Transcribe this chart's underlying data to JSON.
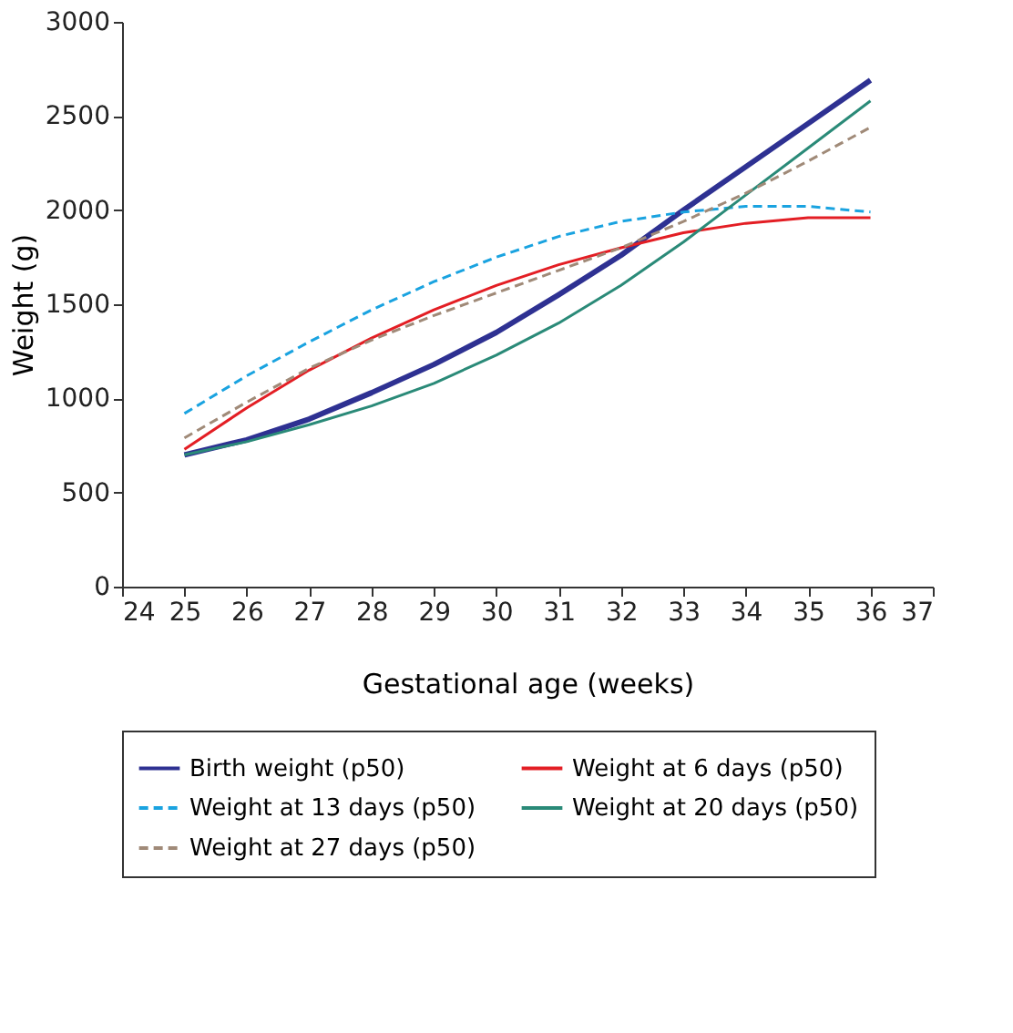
{
  "chart_data": {
    "type": "line",
    "xlabel": "Gestational age (weeks)",
    "ylabel": "Weight (g)",
    "x": [
      25,
      26,
      27,
      28,
      29,
      30,
      31,
      32,
      33,
      34,
      35,
      36
    ],
    "xlim": [
      24,
      37
    ],
    "xticks": [
      24,
      25,
      26,
      27,
      28,
      29,
      30,
      31,
      32,
      33,
      34,
      35,
      36,
      37
    ],
    "ylim": [
      0,
      3000
    ],
    "yticks": [
      0,
      500,
      1000,
      1500,
      2000,
      2500,
      3000
    ],
    "grid": false,
    "legend": "bottom",
    "marker": "none",
    "series": [
      {
        "name": "Birth weight (p50)",
        "color": "#2e3192",
        "line_style": "solid",
        "values": [
          700,
          780,
          890,
          1030,
          1180,
          1350,
          1550,
          1760,
          2000,
          2230,
          2460,
          2690
        ]
      },
      {
        "name": "Weight at 6 days (p50)",
        "color": "#e31e24",
        "line_style": "solid",
        "values": [
          730,
          950,
          1150,
          1320,
          1470,
          1600,
          1710,
          1800,
          1880,
          1930,
          1960,
          1960
        ]
      },
      {
        "name": "Weight at 13 days (p50)",
        "color": "#1aa3e0",
        "line_style": "dashed",
        "values": [
          920,
          1120,
          1300,
          1470,
          1620,
          1750,
          1860,
          1940,
          1990,
          2020,
          2020,
          1990
        ]
      },
      {
        "name": "Weight at 20 days (p50)",
        "color": "#2a8a78",
        "line_style": "solid",
        "values": [
          700,
          770,
          860,
          960,
          1080,
          1230,
          1400,
          1600,
          1830,
          2080,
          2330,
          2580
        ]
      },
      {
        "name": "Weight at 27 days (p50)",
        "color": "#a08a78",
        "line_style": "dashed",
        "values": [
          790,
          980,
          1160,
          1310,
          1440,
          1560,
          1680,
          1800,
          1940,
          2090,
          2260,
          2440
        ]
      }
    ]
  }
}
